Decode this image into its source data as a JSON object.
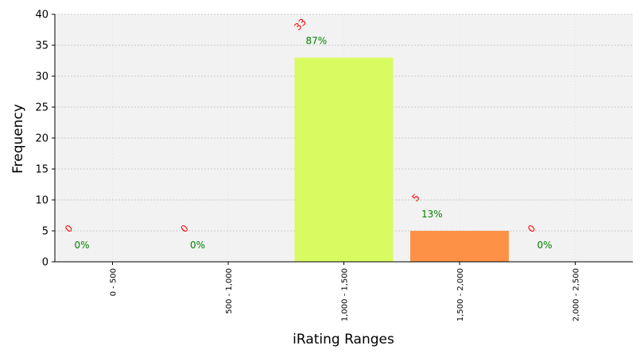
{
  "chart_data": {
    "type": "bar",
    "categories": [
      "0 - 500",
      "500 - 1,000",
      "1,000 - 1,500",
      "1,500 - 2,000",
      "2,000 - 2,500"
    ],
    "values": [
      0,
      0,
      33,
      5,
      0
    ],
    "count_labels": [
      "0",
      "0",
      "33",
      "5",
      "0"
    ],
    "percent_labels": [
      "0%",
      "0%",
      "87%",
      "13%",
      "0%"
    ],
    "bar_colors": [
      "#d9fb62",
      "#d9fb62",
      "#d9fb62",
      "#fd9246",
      "#fd9246"
    ],
    "count_label_color": "#ff0000",
    "percent_label_color": "#008000",
    "background_color": "#f2f2f2",
    "xlabel": "iRating Ranges",
    "ylabel": "Frequency",
    "ylim": [
      0,
      40
    ],
    "yticks": [
      0,
      5,
      10,
      15,
      20,
      25,
      30,
      35,
      40
    ],
    "grid": true
  }
}
